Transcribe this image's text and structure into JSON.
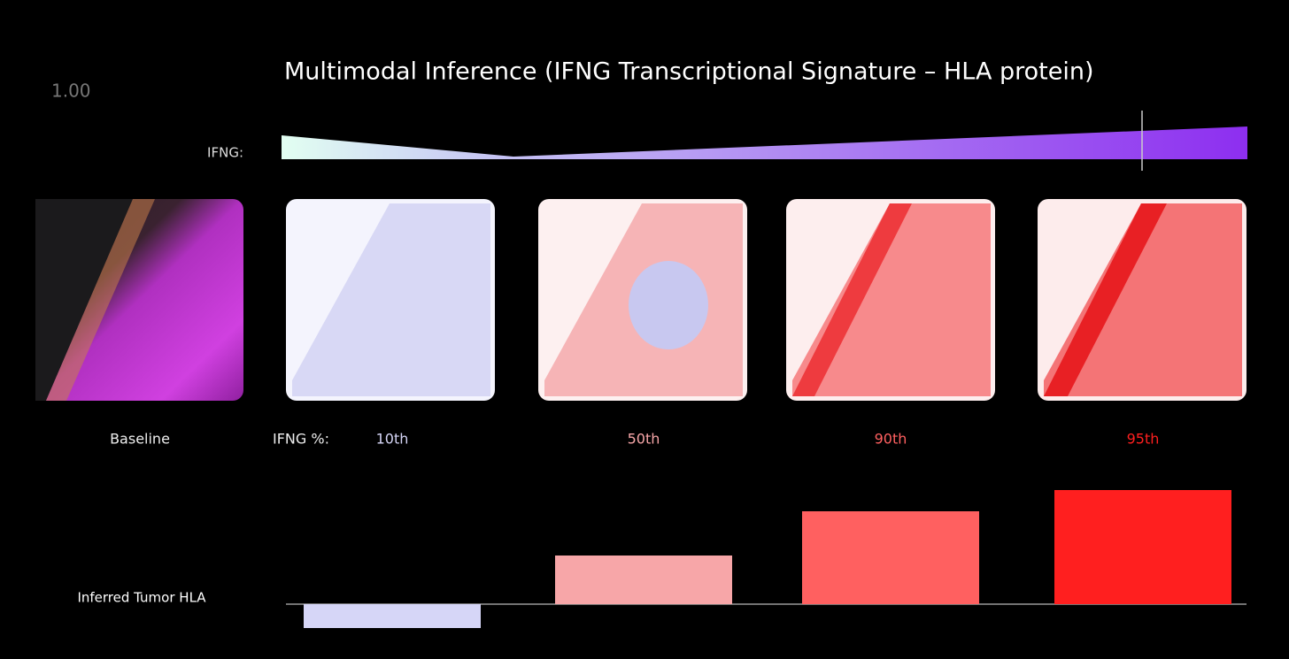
{
  "title": "Multimodal Inference (IFNG Transcriptional Signature – HLA protein)",
  "counter": "1.00",
  "ifng_label": "IFNG:",
  "baseline_label": "Baseline",
  "percentile_label": "IFNG %:",
  "chart_data": {
    "type": "bar",
    "categories": [
      "10th",
      "50th",
      "90th",
      "95th"
    ],
    "values": [
      -27,
      55,
      105,
      129
    ],
    "colors": [
      "#d6d6f7",
      "#f7a6a8",
      "#ff6060",
      "#ff1f1f"
    ],
    "y_label": "Inferred Tumor HLA"
  }
}
